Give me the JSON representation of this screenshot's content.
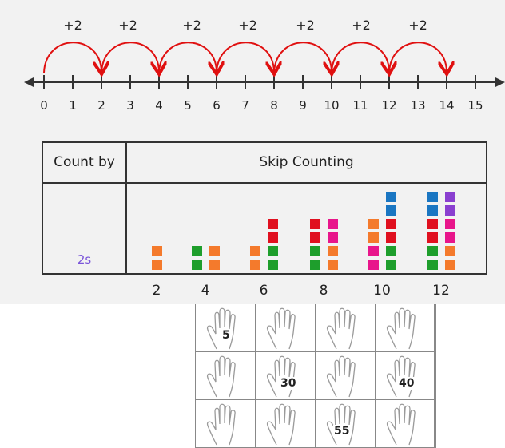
{
  "number_line": {
    "ticks": [
      "0",
      "1",
      "2",
      "3",
      "4",
      "5",
      "6",
      "7",
      "8",
      "9",
      "10",
      "11",
      "12",
      "13",
      "14",
      "15"
    ],
    "hops": [
      "+2",
      "+2",
      "+2",
      "+2",
      "+2",
      "+2",
      "+2"
    ],
    "hop_color": "#e01010"
  },
  "table": {
    "header_count_by": "Count by",
    "header_skip_counting": "Skip Counting",
    "row_label": "2s",
    "row_label_color": "#7a55d9",
    "columns": [
      "2",
      "4",
      "6",
      "8",
      "10",
      "12"
    ],
    "block_colors": [
      "#f47a2c",
      "#1e9e2c",
      "#e0101f",
      "#e8168b",
      "#1a76c2",
      "#8a3fd0"
    ]
  },
  "hands_grid": {
    "numbers": [
      "5",
      "",
      "",
      "",
      "",
      "30",
      "",
      "40",
      "",
      "",
      "55",
      ""
    ]
  }
}
